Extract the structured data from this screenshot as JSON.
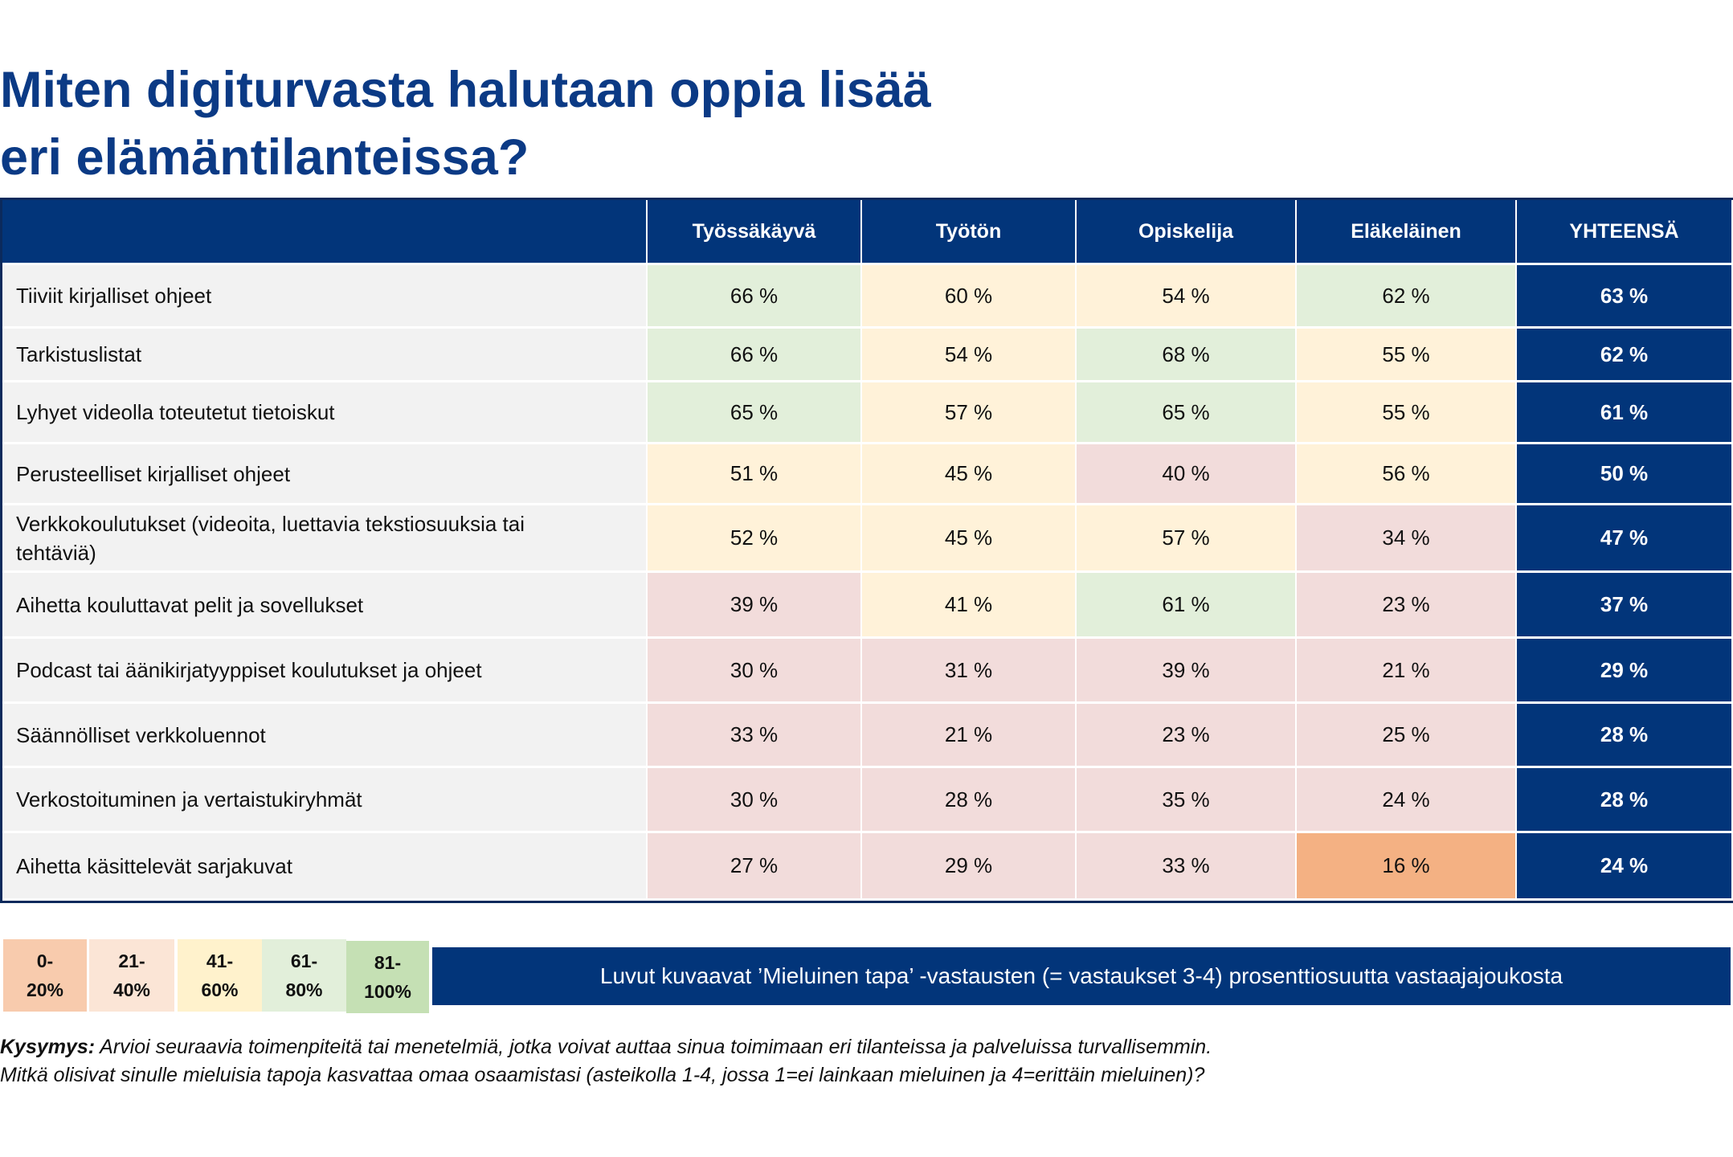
{
  "title": {
    "line1": "Miten digiturvasta halutaan oppia lisää",
    "line2": "eri elämäntilanteissa?"
  },
  "table": {
    "columns": [
      "",
      "Työssäkäyvä",
      "Työtön",
      "Opiskelija",
      "Eläkeläinen",
      "YHTEENSÄ"
    ],
    "rows": [
      {
        "label": "Tiiviit kirjalliset ohjeet",
        "values": [
          "66 %",
          "60 %",
          "54 %",
          "62 %"
        ],
        "total": "63 %"
      },
      {
        "label": "Tarkistuslistat",
        "values": [
          "66 %",
          "54 %",
          "68 %",
          "55 %"
        ],
        "total": "62 %"
      },
      {
        "label": "Lyhyet videolla toteutetut tietoiskut",
        "values": [
          "65 %",
          "57 %",
          "65 %",
          "55 %"
        ],
        "total": "61 %"
      },
      {
        "label": "Perusteelliset kirjalliset ohjeet",
        "values": [
          "51 %",
          "45 %",
          "40 %",
          "56 %"
        ],
        "total": "50 %"
      },
      {
        "label": "Verkkokoulutukset (videoita, luettavia tekstiosuuksia tai tehtäviä)",
        "values": [
          "52 %",
          "45 %",
          "57 %",
          "34 %"
        ],
        "total": "47 %"
      },
      {
        "label": "Aihetta kouluttavat pelit ja sovellukset",
        "values": [
          "39 %",
          "41 %",
          "61 %",
          "23 %"
        ],
        "total": "37 %"
      },
      {
        "label": "Podcast tai äänikirjatyyppiset koulutukset ja ohjeet",
        "values": [
          "30 %",
          "31 %",
          "39 %",
          "21 %"
        ],
        "total": "29 %"
      },
      {
        "label": "Säännölliset verkkoluennot",
        "values": [
          "33 %",
          "21 %",
          "23 %",
          "25 %"
        ],
        "total": "28 %"
      },
      {
        "label": "Verkostoituminen ja vertaistukiryhmät",
        "values": [
          "30 %",
          "28 %",
          "35 %",
          "24 %"
        ],
        "total": "28 %"
      },
      {
        "label": "Aihetta käsittelevät sarjakuvat",
        "values": [
          "27 %",
          "29 %",
          "33 %",
          "16 %"
        ],
        "total": "24 %"
      }
    ]
  },
  "legend": [
    {
      "line1": "0-",
      "line2": "20%",
      "color": "#f8cbad"
    },
    {
      "line1": "21-",
      "line2": "40%",
      "color": "#fbe5d6"
    },
    {
      "line1": "41-",
      "line2": "60%",
      "color": "#fff2cc"
    },
    {
      "line1": "61-",
      "line2": "80%",
      "color": "#e2efda"
    },
    {
      "line1": "81-",
      "line2": "100%",
      "color": "#c5e0b4"
    }
  ],
  "cell_colors": {
    "0-20": "#f4b183",
    "21-40": "#f2dcdb",
    "41-60": "#fff2d9",
    "61-80": "#e2efda",
    "81-100": "#c5e0b4"
  },
  "note": "Luvut kuvaavat ’Mieluinen tapa’ -vastausten (= vastaukset 3-4) prosenttiosuutta vastaajajoukosta",
  "question": {
    "label": "Kysymys:",
    "line1": "Arvioi seuraavia toimenpiteitä tai menetelmiä, jotka voivat auttaa sinua toimimaan eri tilanteissa ja palveluissa turvallisemmin.",
    "line2": "Mitkä olisivat sinulle mieluisia tapoja kasvattaa omaa osaamistasi (asteikolla 1-4, jossa 1=ei lainkaan mieluinen ja 4=erittäin mieluinen)?"
  }
}
